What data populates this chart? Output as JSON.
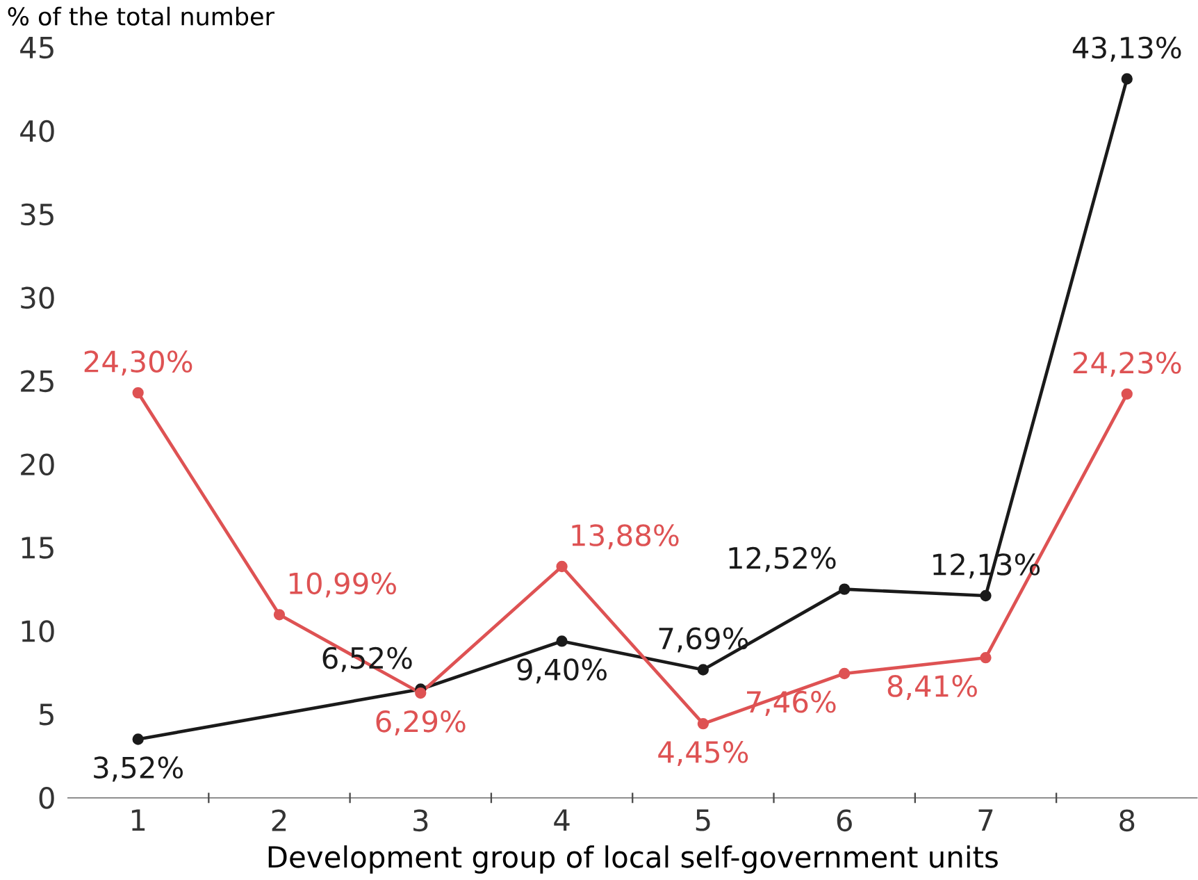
{
  "chart_data": {
    "type": "line",
    "ylabel": "% of the total number",
    "xlabel": "Development group of local self-government units",
    "categories": [
      "1",
      "2",
      "3",
      "4",
      "5",
      "6",
      "7",
      "8"
    ],
    "series": [
      {
        "color": "#1a1a1a",
        "values": [
          3.52,
          null,
          6.52,
          9.4,
          7.69,
          12.52,
          12.13,
          43.13
        ],
        "value_labels": [
          "3,52%",
          null,
          "6,52%",
          "9,40%",
          "7,69%",
          "12,52%",
          "12,13%",
          "43,13%"
        ]
      },
      {
        "color": "#de5253",
        "values": [
          24.3,
          10.99,
          6.29,
          13.88,
          4.45,
          7.46,
          8.41,
          24.23
        ],
        "value_labels": [
          "24,30%",
          "10,99%",
          "6,29%",
          "13,88%",
          "4,45%",
          "7,46%",
          "8,41%",
          "24,23%"
        ]
      }
    ],
    "ylim": [
      0,
      45
    ],
    "yticks": [
      0,
      5,
      10,
      15,
      20,
      25,
      30,
      35,
      40,
      45
    ],
    "grid": false,
    "marker": "circle",
    "line_style": "solid"
  }
}
